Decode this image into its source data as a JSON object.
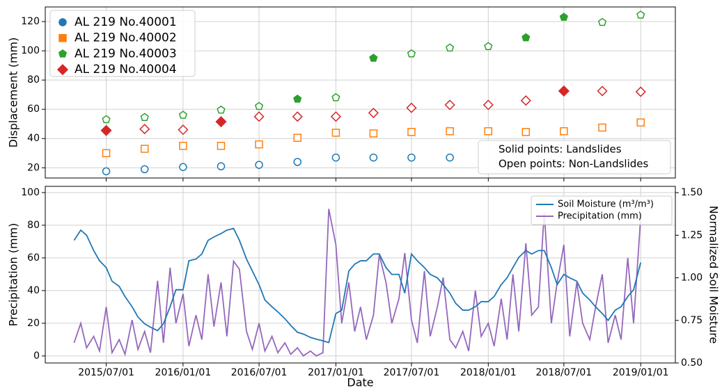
{
  "chart_data": [
    {
      "type": "scatter",
      "ylabel": "Displacement (mm)",
      "x": [
        "2015-07-01",
        "2015-10-01",
        "2016-01-01",
        "2016-04-01",
        "2016-07-01",
        "2016-10-01",
        "2017-01-01",
        "2017-04-01",
        "2017-07-01",
        "2017-10-01",
        "2018-01-01",
        "2018-04-01",
        "2018-07-01",
        "2018-10-01",
        "2019-01-01"
      ],
      "series": [
        {
          "name": "AL 219 No.40001",
          "color": "#1f77b4",
          "marker": "circle",
          "values": [
            17.6,
            19,
            20.5,
            21,
            22,
            24,
            27,
            27,
            27,
            27,
            null,
            null,
            null,
            null,
            null
          ],
          "filled": [
            false,
            false,
            false,
            false,
            false,
            false,
            false,
            false,
            false,
            false,
            false,
            false,
            false,
            false,
            false
          ]
        },
        {
          "name": "AL 219 No.40002",
          "color": "#ff7f0e",
          "marker": "square",
          "values": [
            30,
            33,
            35,
            35,
            36,
            40.5,
            44,
            43.5,
            44.5,
            45,
            45,
            44.5,
            45,
            47.5,
            51
          ],
          "filled": [
            false,
            false,
            false,
            false,
            false,
            false,
            false,
            false,
            false,
            false,
            false,
            false,
            false,
            false,
            false
          ]
        },
        {
          "name": "AL 219 No.40003",
          "color": "#2ca02c",
          "marker": "pentagon",
          "values": [
            53,
            54.5,
            56,
            59.5,
            62,
            67,
            68,
            95,
            98,
            102,
            103,
            109,
            123,
            119.5,
            124.5
          ],
          "filled": [
            false,
            false,
            false,
            false,
            false,
            true,
            false,
            true,
            false,
            false,
            false,
            true,
            true,
            false,
            false
          ]
        },
        {
          "name": "AL 219 No.40004",
          "color": "#d62728",
          "marker": "diamond",
          "values": [
            45.5,
            46.5,
            46,
            51.5,
            55,
            55,
            55,
            57.5,
            61,
            63,
            63,
            66,
            72.5,
            72.5,
            72
          ],
          "filled": [
            true,
            false,
            false,
            true,
            false,
            false,
            false,
            false,
            false,
            false,
            false,
            false,
            true,
            false,
            false
          ]
        }
      ],
      "xlim": [
        "2015-02-05",
        "2019-03-25"
      ],
      "xticks": [
        {
          "value": "2015-07-01",
          "label": "2015/07/01"
        },
        {
          "value": "2016-01-01",
          "label": "2016/01/01"
        },
        {
          "value": "2016-07-01",
          "label": "2016/07/01"
        },
        {
          "value": "2017-01-01",
          "label": "2017/01/01"
        },
        {
          "value": "2017-07-01",
          "label": "2017/07/01"
        },
        {
          "value": "2018-01-01",
          "label": "2018/01/01"
        },
        {
          "value": "2018-07-01",
          "label": "2018/07/01"
        },
        {
          "value": "2019-01-01",
          "label": "2019/01/01"
        }
      ],
      "show_xtick_labels": false,
      "ylim": [
        13,
        130
      ],
      "yticks": [
        20,
        40,
        60,
        80,
        100,
        120
      ],
      "grid": true,
      "legend": "upper left",
      "annotations": [
        "Solid points: Landslides",
        "Open points: Non-Landslides"
      ]
    },
    {
      "type": "line",
      "xlabel": "Date",
      "ylabel": "Precipitation (mm)",
      "y2label": "Normalized Soil Moisture",
      "x": [
        "2015-04-15",
        "2015-05-01",
        "2015-05-15",
        "2015-06-01",
        "2015-06-15",
        "2015-07-01",
        "2015-07-15",
        "2015-08-01",
        "2015-08-15",
        "2015-09-01",
        "2015-09-15",
        "2015-10-01",
        "2015-10-15",
        "2015-11-01",
        "2015-11-15",
        "2015-12-01",
        "2015-12-15",
        "2016-01-01",
        "2016-01-15",
        "2016-02-01",
        "2016-02-15",
        "2016-03-01",
        "2016-03-15",
        "2016-04-01",
        "2016-04-15",
        "2016-05-01",
        "2016-05-15",
        "2016-06-01",
        "2016-06-15",
        "2016-07-01",
        "2016-07-15",
        "2016-08-01",
        "2016-08-15",
        "2016-09-01",
        "2016-09-15",
        "2016-10-01",
        "2016-10-15",
        "2016-11-01",
        "2016-11-15",
        "2016-12-01",
        "2016-12-15",
        "2017-01-01",
        "2017-01-15",
        "2017-02-01",
        "2017-02-15",
        "2017-03-01",
        "2017-03-15",
        "2017-04-01",
        "2017-04-15",
        "2017-05-01",
        "2017-05-15",
        "2017-06-01",
        "2017-06-15",
        "2017-07-01",
        "2017-07-15",
        "2017-08-01",
        "2017-08-15",
        "2017-09-01",
        "2017-09-15",
        "2017-10-01",
        "2017-10-15",
        "2017-11-01",
        "2017-11-15",
        "2017-12-01",
        "2017-12-15",
        "2018-01-01",
        "2018-01-15",
        "2018-02-01",
        "2018-02-15",
        "2018-03-01",
        "2018-03-15",
        "2018-04-01",
        "2018-04-15",
        "2018-05-01",
        "2018-05-15",
        "2018-06-01",
        "2018-06-15",
        "2018-07-01",
        "2018-07-15",
        "2018-08-01",
        "2018-08-15",
        "2018-09-01",
        "2018-09-15",
        "2018-10-01",
        "2018-10-15",
        "2018-11-01",
        "2018-11-15",
        "2018-12-01",
        "2018-12-15",
        "2019-01-01"
      ],
      "series": [
        {
          "name": "Soil Moisture (m³/m³)",
          "color": "#1f77b4",
          "axis": "y2",
          "values": [
            1.22,
            1.28,
            1.25,
            1.16,
            1.1,
            1.06,
            0.98,
            0.95,
            0.89,
            0.83,
            0.77,
            0.73,
            0.71,
            0.69,
            0.73,
            0.83,
            0.93,
            0.93,
            1.1,
            1.11,
            1.14,
            1.22,
            1.24,
            1.26,
            1.28,
            1.29,
            1.22,
            1.11,
            1.04,
            0.96,
            0.87,
            0.83,
            0.8,
            0.76,
            0.72,
            0.68,
            0.67,
            0.65,
            0.64,
            0.63,
            0.62,
            0.79,
            0.81,
            1.04,
            1.08,
            1.1,
            1.1,
            1.14,
            1.14,
            1.06,
            1.02,
            1.02,
            0.91,
            1.14,
            1.1,
            1.06,
            1.02,
            1.0,
            0.96,
            0.91,
            0.85,
            0.81,
            0.81,
            0.83,
            0.86,
            0.86,
            0.89,
            0.96,
            1.0,
            1.06,
            1.12,
            1.16,
            1.14,
            1.16,
            1.16,
            1.06,
            0.96,
            1.02,
            1.0,
            0.98,
            0.91,
            0.87,
            0.83,
            0.79,
            0.75,
            0.81,
            0.83,
            0.89,
            0.93,
            1.09
          ]
        },
        {
          "name": "Precipitation (mm)",
          "color": "#9467bd",
          "values": [
            8,
            20,
            5,
            12,
            3,
            30,
            2,
            10,
            1,
            22,
            4,
            15,
            2,
            46,
            8,
            54,
            20,
            38,
            6,
            25,
            10,
            50,
            18,
            45,
            12,
            58,
            53,
            15,
            4,
            20,
            3,
            12,
            2,
            8,
            1,
            5,
            0,
            3,
            0,
            2,
            90,
            68,
            20,
            45,
            15,
            30,
            10,
            25,
            62,
            45,
            20,
            35,
            63,
            22,
            8,
            52,
            12,
            30,
            48,
            10,
            5,
            15,
            3,
            40,
            12,
            20,
            6,
            35,
            10,
            50,
            15,
            69,
            25,
            30,
            88,
            20,
            45,
            68,
            12,
            45,
            20,
            10,
            30,
            50,
            8,
            25,
            10,
            60,
            20,
            85
          ]
        }
      ],
      "xlim": [
        "2015-02-05",
        "2019-03-25"
      ],
      "xticks": [
        {
          "value": "2015-07-01",
          "label": "2015/07/01"
        },
        {
          "value": "2016-01-01",
          "label": "2016/01/01"
        },
        {
          "value": "2016-07-01",
          "label": "2016/07/01"
        },
        {
          "value": "2017-01-01",
          "label": "2017/01/01"
        },
        {
          "value": "2017-07-01",
          "label": "2017/07/01"
        },
        {
          "value": "2018-01-01",
          "label": "2018/01/01"
        },
        {
          "value": "2018-07-01",
          "label": "2018/07/01"
        },
        {
          "value": "2019-01-01",
          "label": "2019/01/01"
        }
      ],
      "ylim": [
        -4.3,
        103.8
      ],
      "yticks": [
        0,
        20,
        40,
        60,
        80,
        100
      ],
      "y2lim": [
        0.5,
        1.537
      ],
      "y2ticks": [
        {
          "value": 0.5,
          "label": "0.50"
        },
        {
          "value": 0.75,
          "label": "0.75"
        },
        {
          "value": 1.0,
          "label": "1.00"
        },
        {
          "value": 1.25,
          "label": "1.25"
        },
        {
          "value": 1.5,
          "label": "1.50"
        }
      ],
      "grid": true,
      "legend": "upper right"
    }
  ]
}
